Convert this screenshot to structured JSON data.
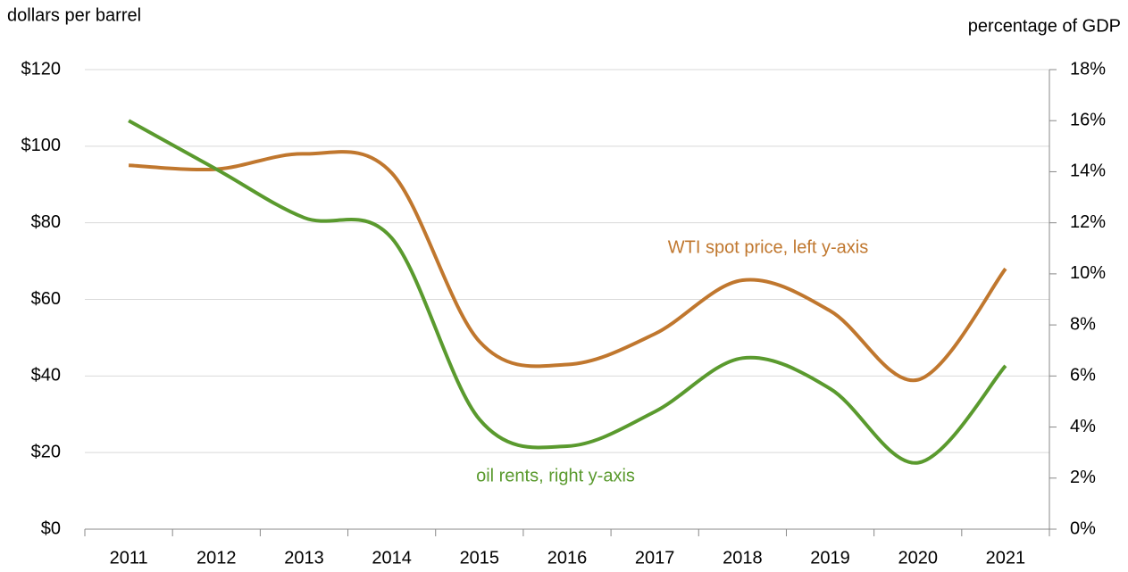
{
  "chart_data": {
    "type": "line",
    "ylabel": "dollars per barrel",
    "y2label": "percentage of GDP",
    "categories": [
      "2011",
      "2012",
      "2013",
      "2014",
      "2015",
      "2016",
      "2017",
      "2018",
      "2019",
      "2020",
      "2021"
    ],
    "series": [
      {
        "name": "WTI spot price, left y-axis",
        "color": "#c0772e",
        "values": [
          95,
          94,
          98,
          93,
          49,
          43,
          51,
          65,
          57,
          39,
          68
        ]
      },
      {
        "name": "oil rents, right y-axis",
        "color": "#5a9a2e",
        "axis": "y2",
        "values": [
          16.0,
          14.1,
          12.2,
          11.4,
          4.3,
          3.25,
          4.6,
          6.7,
          5.5,
          2.6,
          6.4
        ]
      }
    ],
    "ylim": [
      0,
      120
    ],
    "yticks": [
      {
        "value": 0,
        "label": "$0"
      },
      {
        "value": 20,
        "label": "$20"
      },
      {
        "value": 40,
        "label": "$40"
      },
      {
        "value": 60,
        "label": "$60"
      },
      {
        "value": 80,
        "label": "$80"
      },
      {
        "value": 100,
        "label": "$100"
      },
      {
        "value": 120,
        "label": "$120"
      }
    ],
    "y2lim": [
      0,
      18
    ],
    "y2ticks": [
      {
        "value": 0,
        "label": "0%"
      },
      {
        "value": 2,
        "label": "2%"
      },
      {
        "value": 4,
        "label": "4%"
      },
      {
        "value": 6,
        "label": "6%"
      },
      {
        "value": 8,
        "label": "8%"
      },
      {
        "value": 10,
        "label": "10%"
      },
      {
        "value": 12,
        "label": "12%"
      },
      {
        "value": 14,
        "label": "14%"
      },
      {
        "value": 16,
        "label": "16%"
      },
      {
        "value": 18,
        "label": "18%"
      }
    ],
    "grid": true
  }
}
